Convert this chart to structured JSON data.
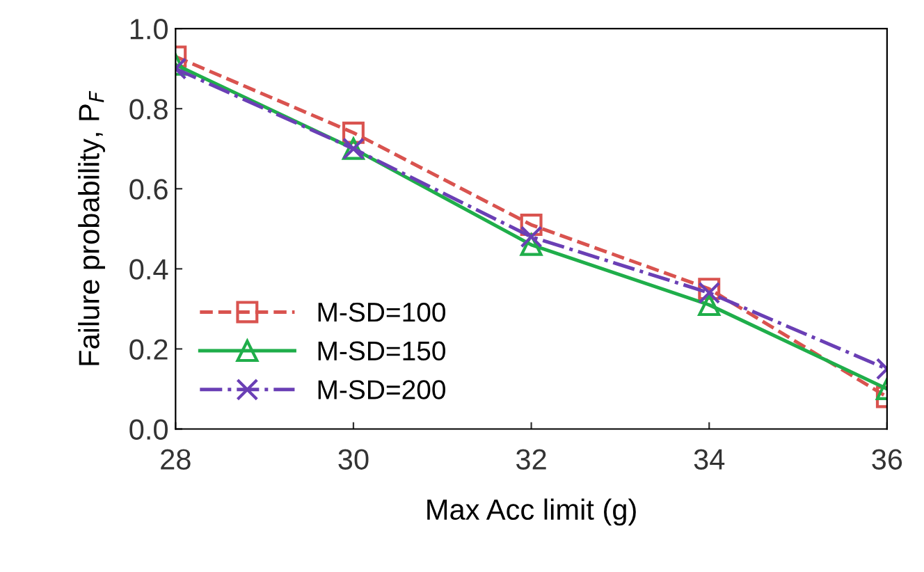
{
  "chart_data": {
    "type": "line",
    "xlabel": "Max Acc limit (g)",
    "ylabel": "Failure probability, P$_{F}$",
    "x": [
      28,
      30,
      32,
      34,
      36
    ],
    "series": [
      {
        "name": "M-SD=100",
        "color": "#d9534f",
        "values": [
          0.93,
          0.74,
          0.51,
          0.35,
          0.08
        ],
        "marker": "square",
        "line_style": "dashed"
      },
      {
        "name": "M-SD=150",
        "color": "#1fae4a",
        "values": [
          0.91,
          0.7,
          0.46,
          0.31,
          0.1
        ],
        "marker": "triangle",
        "line_style": "solid"
      },
      {
        "name": "M-SD=200",
        "color": "#6a3fb5",
        "values": [
          0.9,
          0.7,
          0.48,
          0.34,
          0.15
        ],
        "marker": "cross",
        "line_style": "dashdot"
      }
    ],
    "xlim": [
      28,
      36
    ],
    "xticks": [
      28,
      30,
      32,
      34,
      36
    ],
    "ylim": [
      0.0,
      1.0
    ],
    "yticks": [
      {
        "value": 0,
        "label": "0.0"
      },
      {
        "value": 0.2,
        "label": "0.2"
      },
      {
        "value": 0.4,
        "label": "0.4"
      },
      {
        "value": 0.6,
        "label": "0.6"
      },
      {
        "value": 0.8,
        "label": "0.8"
      },
      {
        "value": 1.0,
        "label": "1.0"
      }
    ],
    "grid": false,
    "legend": "bottom left"
  }
}
